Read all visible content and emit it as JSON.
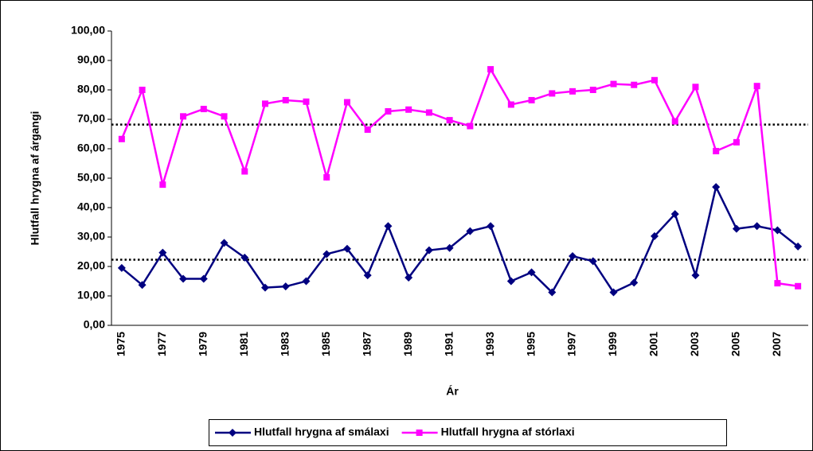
{
  "chart_data": {
    "type": "line",
    "x_label": "Ár",
    "y_label": "Hlutfall hrygna af árgangi",
    "categories": [
      "1975",
      null,
      "1977",
      null,
      "1979",
      null,
      "1981",
      null,
      "1983",
      null,
      "1985",
      null,
      "1987",
      null,
      "1989",
      null,
      "1991",
      null,
      "1993",
      null,
      "1995",
      null,
      "1997",
      null,
      "1999",
      null,
      "2001",
      null,
      "2003",
      null,
      "2005",
      null,
      "2007",
      null
    ],
    "series": [
      {
        "name": "Hlutfall hrygna af smálaxi",
        "color": "#000080",
        "marker": "diamond",
        "values": [
          19.5,
          13.7,
          24.7,
          15.8,
          15.8,
          28.0,
          23.0,
          12.8,
          13.2,
          15.0,
          24.2,
          26.0,
          17.0,
          33.7,
          16.2,
          25.5,
          26.3,
          32.0,
          33.7,
          15.0,
          18.0,
          11.2,
          23.5,
          21.8,
          11.2,
          14.5,
          30.3,
          37.8,
          17.0,
          47.0,
          32.8,
          33.7,
          32.3,
          26.8
        ]
      },
      {
        "name": "Hlutfall hrygna af stórlaxi",
        "color": "#ff00ff",
        "marker": "square",
        "values": [
          63.3,
          80.0,
          47.8,
          71.0,
          73.5,
          71.0,
          52.3,
          75.3,
          76.5,
          76.0,
          50.3,
          75.8,
          66.5,
          72.7,
          73.3,
          72.3,
          69.7,
          67.7,
          87.0,
          75.0,
          76.5,
          78.8,
          79.5,
          80.0,
          82.0,
          81.7,
          83.3,
          69.3,
          81.0,
          59.2,
          62.2,
          81.3,
          14.3,
          13.3
        ]
      }
    ],
    "reference_lines": [
      68.2,
      22.3
    ],
    "ylim": [
      0,
      100
    ],
    "yticks": [
      {
        "value": 0,
        "label": "0,00"
      },
      {
        "value": 10,
        "label": "10,00"
      },
      {
        "value": 20,
        "label": "20,00"
      },
      {
        "value": 30,
        "label": "30,00"
      },
      {
        "value": 40,
        "label": "40,00"
      },
      {
        "value": 50,
        "label": "50,00"
      },
      {
        "value": 60,
        "label": "60,00"
      },
      {
        "value": 70,
        "label": "70,00"
      },
      {
        "value": 80,
        "label": "80,00"
      },
      {
        "value": 90,
        "label": "90,00"
      },
      {
        "value": 100,
        "label": "100,00"
      }
    ],
    "legend": "bottom"
  }
}
